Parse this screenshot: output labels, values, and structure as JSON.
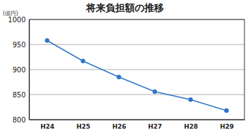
{
  "chart_data": {
    "type": "line",
    "title": "将来負担額の推移",
    "y_label": "(億円)",
    "categories": [
      "H24",
      "H25",
      "H26",
      "H27",
      "H28",
      "H29"
    ],
    "values": [
      958,
      917,
      885,
      856,
      840,
      818
    ],
    "color": "#2e75c6",
    "marker": "circle",
    "ylim": [
      800,
      1000
    ],
    "yticks": [
      800,
      850,
      900,
      950,
      1000
    ],
    "grid": true
  }
}
